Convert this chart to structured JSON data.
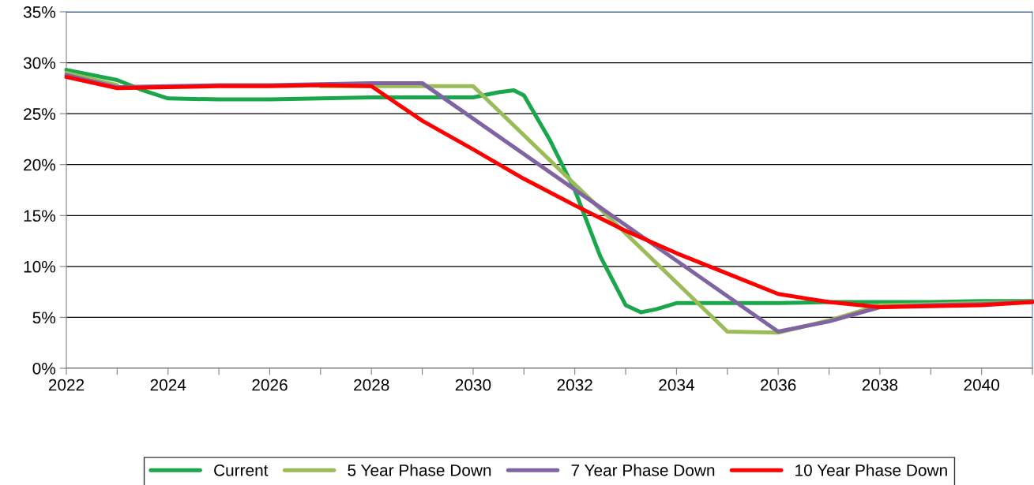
{
  "chart_data": {
    "type": "line",
    "series": [
      {
        "name": "Current",
        "color": "#1aa64a",
        "x": [
          2022,
          2023,
          2023.5,
          2024,
          2025,
          2026,
          2027,
          2028,
          2029,
          2030,
          2030.5,
          2030.8,
          2031,
          2031.5,
          2032,
          2032.5,
          2033,
          2033.3,
          2033.6,
          2034,
          2035,
          2036,
          2037,
          2038,
          2039,
          2040,
          2041
        ],
        "values": [
          29.3,
          28.3,
          27.3,
          26.5,
          26.4,
          26.4,
          26.5,
          26.6,
          26.6,
          26.6,
          27.1,
          27.3,
          26.8,
          22.5,
          17.5,
          11,
          6.2,
          5.5,
          5.8,
          6.4,
          6.4,
          6.4,
          6.5,
          6.5,
          6.5,
          6.6,
          6.6
        ]
      },
      {
        "name": "5 Year Phase Down",
        "color": "#9bbb59",
        "x": [
          2022,
          2023,
          2024,
          2025,
          2026,
          2027,
          2028,
          2029,
          2030,
          2035,
          2036,
          2037,
          2038,
          2039,
          2040,
          2041
        ],
        "values": [
          29,
          27.8,
          null,
          null,
          null,
          27.7,
          27.7,
          27.7,
          27.7,
          3.6,
          3.5,
          4.7,
          6.2,
          6.3,
          6.4,
          6.5
        ]
      },
      {
        "name": "7 Year Phase Down",
        "color": "#8064a2",
        "x": [
          2022,
          2023,
          2024,
          2025,
          2026,
          2027,
          2028,
          2029,
          2036,
          2037,
          2038,
          2039,
          2040,
          2041
        ],
        "values": [
          28.8,
          27.6,
          27.7,
          27.8,
          27.8,
          27.9,
          28,
          28,
          3.6,
          4.6,
          6.0,
          6.2,
          6.3,
          6.5
        ]
      },
      {
        "name": "10 Year Phase Down",
        "color": "#ff0000",
        "x": [
          2022,
          2023,
          2024,
          2025,
          2026,
          2027,
          2028,
          2029,
          2030,
          2031,
          2032,
          2033,
          2034,
          2035,
          2036,
          2037,
          2038,
          2039,
          2040,
          2041
        ],
        "values": [
          28.6,
          27.5,
          27.6,
          27.7,
          27.7,
          27.8,
          27.7,
          24.3,
          21.5,
          18.6,
          16.0,
          13.5,
          11.3,
          9.3,
          7.3,
          6.5,
          6.0,
          6.1,
          6.2,
          6.5
        ]
      }
    ],
    "xlim": [
      2022,
      2041
    ],
    "xticks": [
      2022,
      {
        "value": 2023,
        "label": null
      },
      2024,
      {
        "value": 2025,
        "label": null
      },
      2026,
      {
        "value": 2027,
        "label": null
      },
      2028,
      {
        "value": 2029,
        "label": null
      },
      2030,
      {
        "value": 2031,
        "label": null
      },
      2032,
      {
        "value": 2033,
        "label": null
      },
      2034,
      {
        "value": 2035,
        "label": null
      },
      2036,
      {
        "value": 2037,
        "label": null
      },
      2038,
      {
        "value": 2039,
        "label": null
      },
      2040,
      {
        "value": 2041,
        "label": null
      }
    ],
    "ylim": [
      0,
      35
    ],
    "yticks": [
      {
        "value": 0,
        "label": "0%"
      },
      {
        "value": 5,
        "label": "5%"
      },
      {
        "value": 10,
        "label": "10%"
      },
      {
        "value": 15,
        "label": "15%"
      },
      {
        "value": 20,
        "label": "20%"
      },
      {
        "value": 25,
        "label": "25%"
      },
      {
        "value": 30,
        "label": "30%"
      },
      {
        "value": 35,
        "label": "35%"
      }
    ],
    "grid": "y",
    "legend": "bottom",
    "marker": "none",
    "line_style": "solid"
  }
}
